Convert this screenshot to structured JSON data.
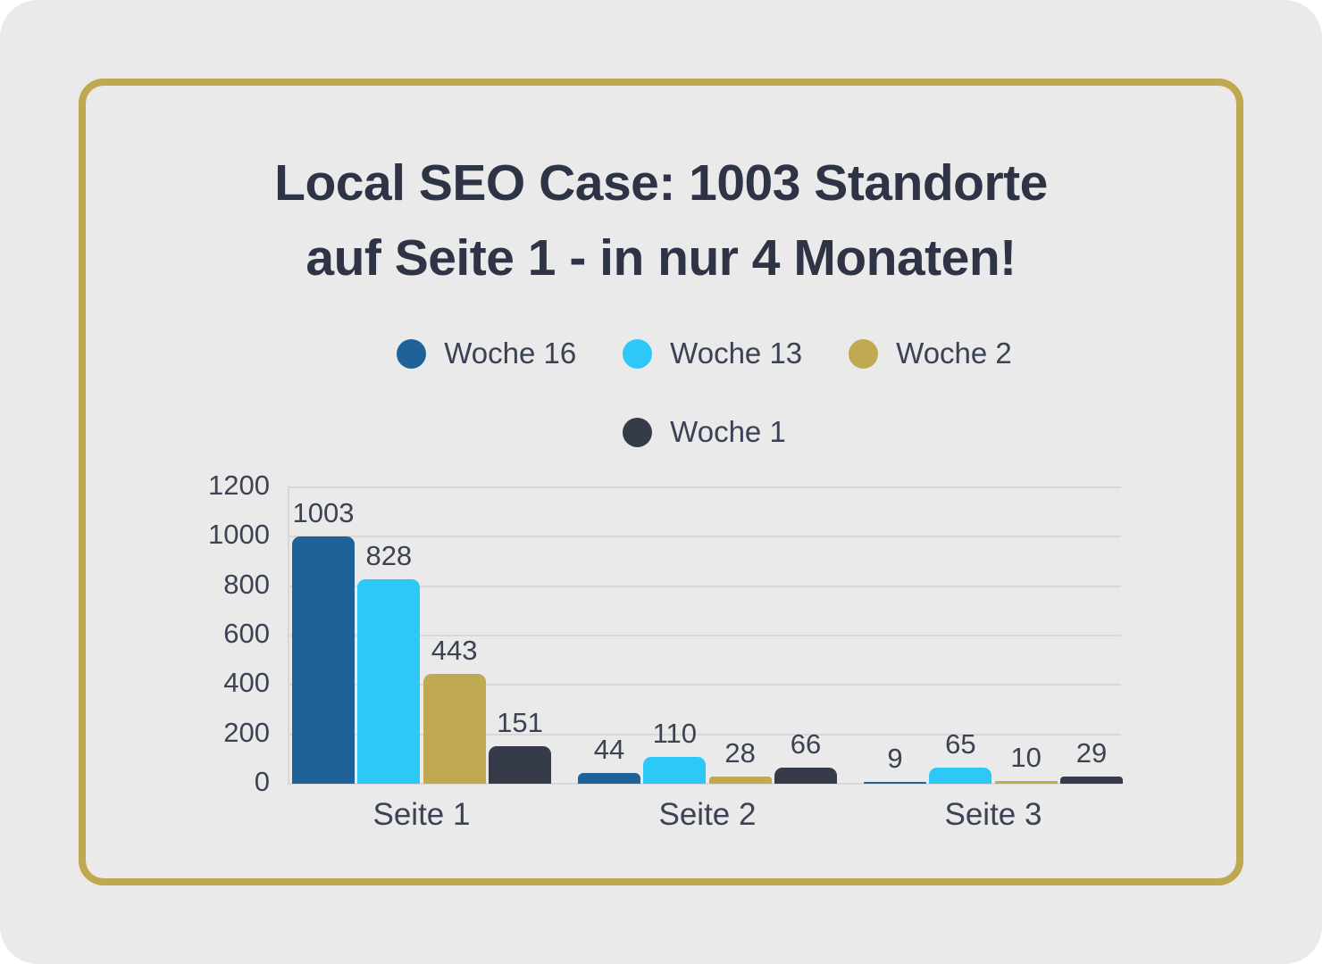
{
  "page": {
    "background_color": "#eaeaea",
    "card_border_color": "#bfa850"
  },
  "title": {
    "line1": "Local SEO Case: 1003 Standorte",
    "line2": "auf Seite 1 - in nur 4 Monaten!",
    "color": "#2e3446"
  },
  "chart_data": {
    "type": "bar",
    "title": "Local SEO Case: 1003 Standorte auf Seite 1 - in nur 4 Monaten!",
    "categories": [
      "Seite 1",
      "Seite 2",
      "Seite 3"
    ],
    "series": [
      {
        "name": "Woche 16",
        "color": "#1f6299",
        "values": [
          1003,
          44,
          9
        ]
      },
      {
        "name": "Woche 13",
        "color": "#2ec8f8",
        "values": [
          828,
          110,
          65
        ]
      },
      {
        "name": "Woche 2",
        "color": "#bfaa51",
        "values": [
          443,
          28,
          10
        ]
      },
      {
        "name": "Woche 1",
        "color": "#353b48",
        "values": [
          151,
          66,
          29
        ]
      }
    ],
    "y_ticks": [
      0,
      200,
      400,
      600,
      800,
      1000,
      1200
    ],
    "ylim": [
      0,
      1200
    ],
    "xlabel": "",
    "ylabel": "",
    "grid": true,
    "legend_position": "top",
    "legend_rows": [
      [
        "Woche 16",
        "Woche 13",
        "Woche 2"
      ],
      [
        "Woche 1"
      ]
    ],
    "value_labels_shown": true,
    "grid_color": "#d8d8d8",
    "text_color": "#3c4354"
  }
}
